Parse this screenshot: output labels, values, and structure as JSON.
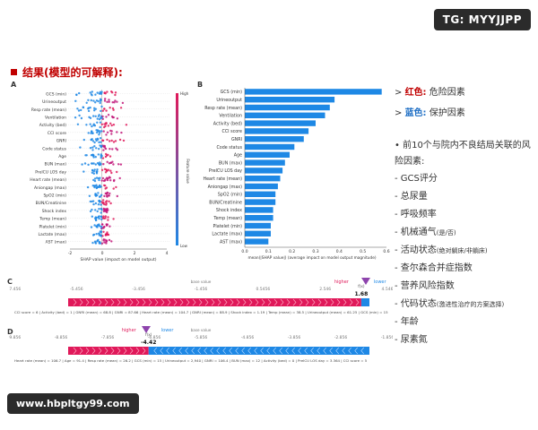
{
  "watermark_top": "TG: MYYJJPP",
  "watermark_bottom": "www.hbpltgy99.com",
  "title": "结果(模型的可解释):",
  "panels": {
    "a": "A",
    "b": "B",
    "c": "C",
    "d": "D"
  },
  "features": [
    "GCS (min)",
    "Urineoutput",
    "Resp rate (mean)",
    "Ventilation",
    "Activity (bed)",
    "CCI score",
    "GNRI",
    "Code status",
    "Age",
    "BUN (max)",
    "PreICU LOS day",
    "Heart rate (mean)",
    "Aniongap (max)",
    "SpO2 (min)",
    "BUN/Creatinine",
    "Shock index",
    "Temp (mean)",
    "Platelet (min)",
    "Lactate (max)",
    "AST (max)"
  ],
  "beeswarm": {
    "xlabel": "SHAP value (impact on model output)",
    "ticks": [
      "-2",
      "0",
      "2",
      "4"
    ],
    "colorbar_high": "High",
    "colorbar_low": "Low",
    "colorbar_label": "Feature value"
  },
  "chart_data": {
    "type": "bar",
    "categories": [
      "GCS (min)",
      "Urineoutput",
      "Resp rate (mean)",
      "Ventilation",
      "Activity (bed)",
      "CCI score",
      "GNRI",
      "Code status",
      "Age",
      "BUN (max)",
      "PreICU LOS day",
      "Heart rate (mean)",
      "Aniongap (max)",
      "SpO2 (min)",
      "BUN/Creatinine",
      "Shock index",
      "Temp (mean)",
      "Platelet (min)",
      "Lactate (max)",
      "AST (max)"
    ],
    "values": [
      0.58,
      0.38,
      0.36,
      0.34,
      0.3,
      0.27,
      0.25,
      0.21,
      0.19,
      0.17,
      0.16,
      0.15,
      0.14,
      0.13,
      0.13,
      0.12,
      0.12,
      0.11,
      0.11,
      0.1
    ],
    "title": "",
    "xlabel": "mean(|SHAP value|) (average impact on model output magnitude)",
    "ylabel": "",
    "xlim": [
      0,
      0.6
    ],
    "xticks": [
      "0.0",
      "0.1",
      "0.2",
      "0.3",
      "0.4",
      "0.5",
      "0.6"
    ],
    "color": "#1e88e5"
  },
  "force_c": {
    "axis": [
      "-7.456",
      "-5.456",
      "-3.456",
      "-1.456",
      "0.5456",
      "2.546",
      "4.546"
    ],
    "higher": "higher",
    "lower": "lower",
    "fx": "f(x)",
    "value": "1.68",
    "base_value": "base value",
    "features": "CCI score = 6  |  Activity (bed) = 1  |  GNRI (mean) = 68.8  |  GNRI = 87.66  |  Heart rate (mean) = 104.7  |  GNRI (mean) = 88.9  |  Shock index = 1.19  |  Temp (mean) = 38.5  |  Urineoutput (mean) = 61.25  |  GCS (min) = 15"
  },
  "force_d": {
    "axis": [
      "-9.856",
      "-8.856",
      "-7.856",
      "-6.856",
      "-5.856",
      "-4.856",
      "-3.856",
      "-2.856",
      "-1.856"
    ],
    "higher": "higher",
    "lower": "lower",
    "fx": "f(x)",
    "value": "-4.42",
    "base_value": "base value",
    "features": "Heart rate (mean) = 106.7  |  Age = 91.4  |  Resp rate (mean) = 26.2  |  GCS (min) = 15  |  Urineoutput = 2,940  |  GNRI = 106.4  |  BUN (max) = 12  |  Activity (bed) = 0  |  PreICU LOS day = 3.364  |  CCI score = 5"
  },
  "legend": {
    "red_label": "红色:",
    "red_text": "危险因素",
    "blue_label": "蓝色:",
    "blue_text": "保护因素"
  },
  "bullet_head": "前10个与院内不良结局关联的风险因素:",
  "risk_items": [
    "GCS评分",
    "总尿量",
    "呼吸频率",
    "机械通气(是/否)",
    "活动状态(绝对躺床/非躺床)",
    "查尔森合并症指数",
    "营养风险指数",
    "代码状态(激进性治疗的方案选择)",
    "年龄",
    "尿素氮"
  ]
}
